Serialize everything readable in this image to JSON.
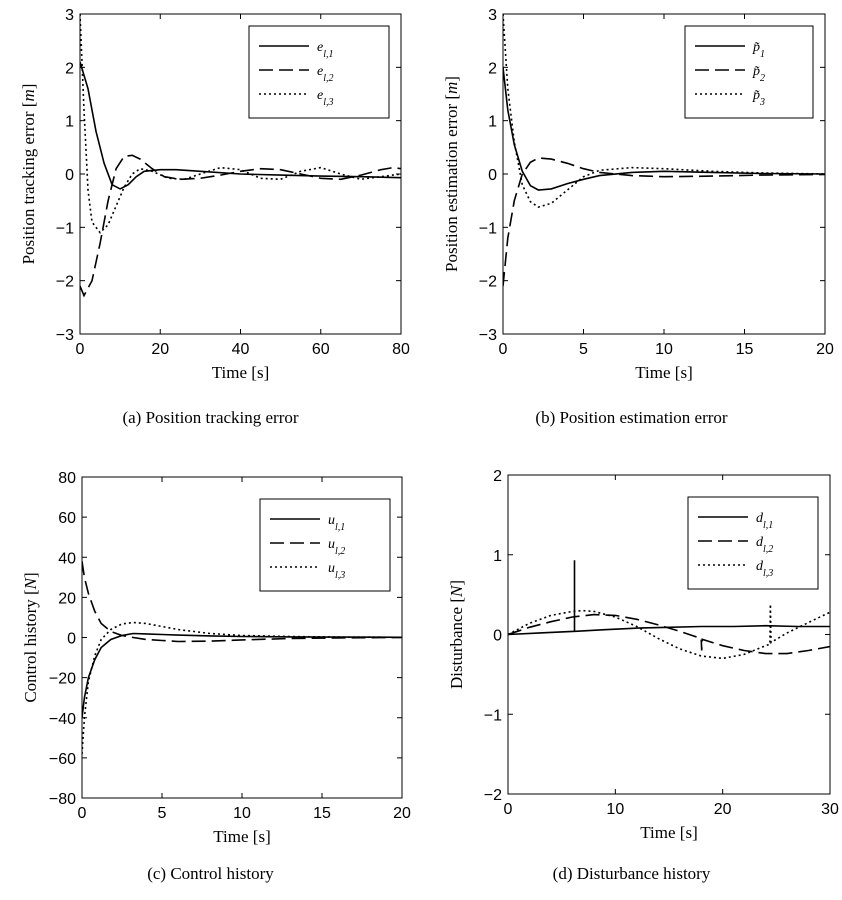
{
  "chart_data": [
    {
      "type": "line",
      "caption": "(a) Position tracking error",
      "xlabel": "Time [s]",
      "ylabel": "Position tracking error [m]",
      "xlim": [
        0,
        80
      ],
      "ylim": [
        -3,
        3
      ],
      "xticks": [
        "0",
        "20",
        "40",
        "60",
        "80"
      ],
      "yticks": [
        "−3",
        "−2",
        "−1",
        "0",
        "1",
        "2",
        "3"
      ],
      "legend": "top-right",
      "series": [
        {
          "name": "e_{l,1}",
          "style": "solid",
          "x": [
            0,
            2,
            4,
            6,
            8,
            10,
            12,
            14,
            16,
            20,
            24,
            30,
            40,
            50,
            60,
            70,
            80
          ],
          "y": [
            2.1,
            1.6,
            0.8,
            0.2,
            -0.2,
            -0.28,
            -0.2,
            -0.05,
            0.05,
            0.08,
            0.08,
            0.05,
            0.0,
            -0.02,
            -0.04,
            -0.05,
            -0.07
          ]
        },
        {
          "name": "e_{l,2}",
          "style": "dash",
          "x": [
            0,
            1,
            3,
            5,
            7,
            9,
            11,
            13,
            15,
            18,
            21,
            25,
            30,
            35,
            40,
            45,
            50,
            55,
            60,
            65,
            70,
            75,
            78,
            80
          ],
          "y": [
            -2.1,
            -2.28,
            -2.0,
            -1.3,
            -0.5,
            0.1,
            0.33,
            0.35,
            0.28,
            0.1,
            -0.05,
            -0.1,
            -0.08,
            -0.02,
            0.05,
            0.1,
            0.08,
            0.0,
            -0.08,
            -0.1,
            -0.02,
            0.08,
            0.12,
            0.1
          ]
        },
        {
          "name": "e_{l,3}",
          "style": "dot",
          "x": [
            0,
            1,
            2,
            3,
            5,
            7,
            9,
            11,
            13,
            15,
            18,
            22,
            26,
            30,
            35,
            40,
            45,
            50,
            55,
            60,
            65,
            70,
            75,
            80
          ],
          "y": [
            3.0,
            1.2,
            -0.3,
            -0.9,
            -1.1,
            -0.95,
            -0.6,
            -0.25,
            0.0,
            0.1,
            0.05,
            -0.08,
            -0.1,
            0.0,
            0.12,
            0.08,
            -0.08,
            -0.1,
            0.05,
            0.12,
            0.0,
            -0.1,
            -0.05,
            0.0
          ]
        }
      ]
    },
    {
      "type": "line",
      "caption": "(b) Position estimation error",
      "xlabel": "Time [s]",
      "ylabel": "Position estimation error [m]",
      "xlim": [
        0,
        20
      ],
      "ylim": [
        -3,
        3
      ],
      "xticks": [
        "0",
        "5",
        "10",
        "15",
        "20"
      ],
      "yticks": [
        "−3",
        "−2",
        "−1",
        "0",
        "1",
        "2",
        "3"
      ],
      "legend": "top-right",
      "series": [
        {
          "name": "p̃_1",
          "style": "solid",
          "x": [
            0,
            0.3,
            0.7,
            1.2,
            1.7,
            2.2,
            3,
            4,
            5,
            6,
            8,
            10,
            13,
            16,
            20
          ],
          "y": [
            2.0,
            1.2,
            0.55,
            0.05,
            -0.22,
            -0.3,
            -0.28,
            -0.18,
            -0.1,
            -0.03,
            0.03,
            0.05,
            0.03,
            0.01,
            0.0
          ]
        },
        {
          "name": "p̃_2",
          "style": "dash",
          "x": [
            0,
            0.3,
            0.7,
            1.2,
            1.7,
            2.2,
            3,
            4,
            5,
            6,
            8,
            10,
            13,
            16,
            20
          ],
          "y": [
            -2.1,
            -1.2,
            -0.5,
            0.0,
            0.22,
            0.3,
            0.28,
            0.2,
            0.1,
            0.03,
            -0.03,
            -0.05,
            -0.04,
            -0.02,
            -0.01
          ]
        },
        {
          "name": "p̃_3",
          "style": "dot",
          "x": [
            0,
            0.3,
            0.7,
            1.2,
            1.7,
            2.2,
            3,
            4,
            5,
            6,
            8,
            10,
            13,
            16,
            20
          ],
          "y": [
            3.0,
            1.6,
            0.6,
            -0.2,
            -0.52,
            -0.62,
            -0.55,
            -0.3,
            -0.05,
            0.07,
            0.12,
            0.1,
            0.05,
            0.02,
            0.0
          ]
        }
      ]
    },
    {
      "type": "line",
      "caption": "(c) Control history",
      "xlabel": "Time [s]",
      "ylabel": "Control history [N]",
      "xlim": [
        0,
        20
      ],
      "ylim": [
        -80,
        80
      ],
      "xticks": [
        "0",
        "5",
        "10",
        "15",
        "20"
      ],
      "yticks": [
        "−80",
        "−60",
        "−40",
        "−20",
        "0",
        "20",
        "40",
        "60",
        "80"
      ],
      "legend": "top-right",
      "series": [
        {
          "name": "u_{l,1}",
          "style": "solid",
          "x": [
            0,
            0.15,
            0.4,
            0.8,
            1.2,
            1.8,
            2.5,
            3.2,
            4,
            5,
            6,
            8,
            10,
            13,
            16,
            20
          ],
          "y": [
            -40,
            -30,
            -20,
            -11,
            -5,
            -1,
            1,
            2,
            1.8,
            1.5,
            1.2,
            0.8,
            0.5,
            0.3,
            0.2,
            0.1
          ]
        },
        {
          "name": "u_{l,2}",
          "style": "dash",
          "x": [
            0,
            0.15,
            0.4,
            0.8,
            1.2,
            1.8,
            2.5,
            3.2,
            4,
            5,
            6,
            8,
            10,
            13,
            16,
            20
          ],
          "y": [
            38,
            30,
            22,
            13,
            7,
            3,
            1,
            0,
            -1,
            -1.5,
            -2,
            -1.8,
            -1.2,
            -0.5,
            -0.2,
            0.0
          ]
        },
        {
          "name": "u_{l,3}",
          "style": "dot",
          "x": [
            0,
            0.15,
            0.4,
            0.8,
            1.2,
            1.8,
            2.5,
            3.2,
            4,
            5,
            6,
            8,
            10,
            13,
            16,
            20
          ],
          "y": [
            -58,
            -40,
            -22,
            -9,
            -1,
            4,
            6.8,
            7.5,
            7,
            5.5,
            4,
            2,
            1,
            0.5,
            0.2,
            0.1
          ]
        }
      ]
    },
    {
      "type": "line",
      "caption": "(d) Disturbance history",
      "xlabel": "Time [s]",
      "ylabel": "Disturbance [N]",
      "xlim": [
        0,
        30
      ],
      "ylim": [
        -2,
        2
      ],
      "xticks": [
        "0",
        "10",
        "20",
        "30"
      ],
      "yticks": [
        "−2",
        "−1",
        "0",
        "1",
        "2"
      ],
      "legend": "top-right",
      "series": [
        {
          "name": "d_{l,1}",
          "style": "solid",
          "x": [
            0,
            3,
            6.2,
            6.2,
            6.2,
            6.3,
            9,
            12,
            15,
            18,
            21,
            24,
            27,
            30
          ],
          "y": [
            0.0,
            0.02,
            0.04,
            0.93,
            0.04,
            0.04,
            0.06,
            0.08,
            0.09,
            0.1,
            0.1,
            0.11,
            0.1,
            0.1
          ]
        },
        {
          "name": "d_{l,2}",
          "style": "dash",
          "x": [
            0,
            2,
            4,
            6,
            8,
            10,
            12,
            14,
            16,
            18,
            18.05,
            18.1,
            20,
            22,
            24,
            26,
            28,
            30
          ],
          "y": [
            0.0,
            0.09,
            0.16,
            0.22,
            0.25,
            0.24,
            0.19,
            0.12,
            0.04,
            -0.05,
            -0.2,
            -0.06,
            -0.14,
            -0.2,
            -0.24,
            -0.24,
            -0.2,
            -0.15
          ]
        },
        {
          "name": "d_{l,3}",
          "style": "dot",
          "x": [
            0,
            2,
            4,
            6,
            7,
            8,
            10,
            12,
            14,
            16,
            18,
            20,
            22,
            24,
            24.4,
            24.45,
            24.5,
            26,
            28,
            30
          ],
          "y": [
            0.0,
            0.14,
            0.24,
            0.29,
            0.3,
            0.29,
            0.22,
            0.1,
            -0.05,
            -0.18,
            -0.27,
            -0.3,
            -0.25,
            -0.14,
            -0.12,
            0.38,
            -0.1,
            0.02,
            0.15,
            0.28
          ]
        }
      ]
    }
  ]
}
